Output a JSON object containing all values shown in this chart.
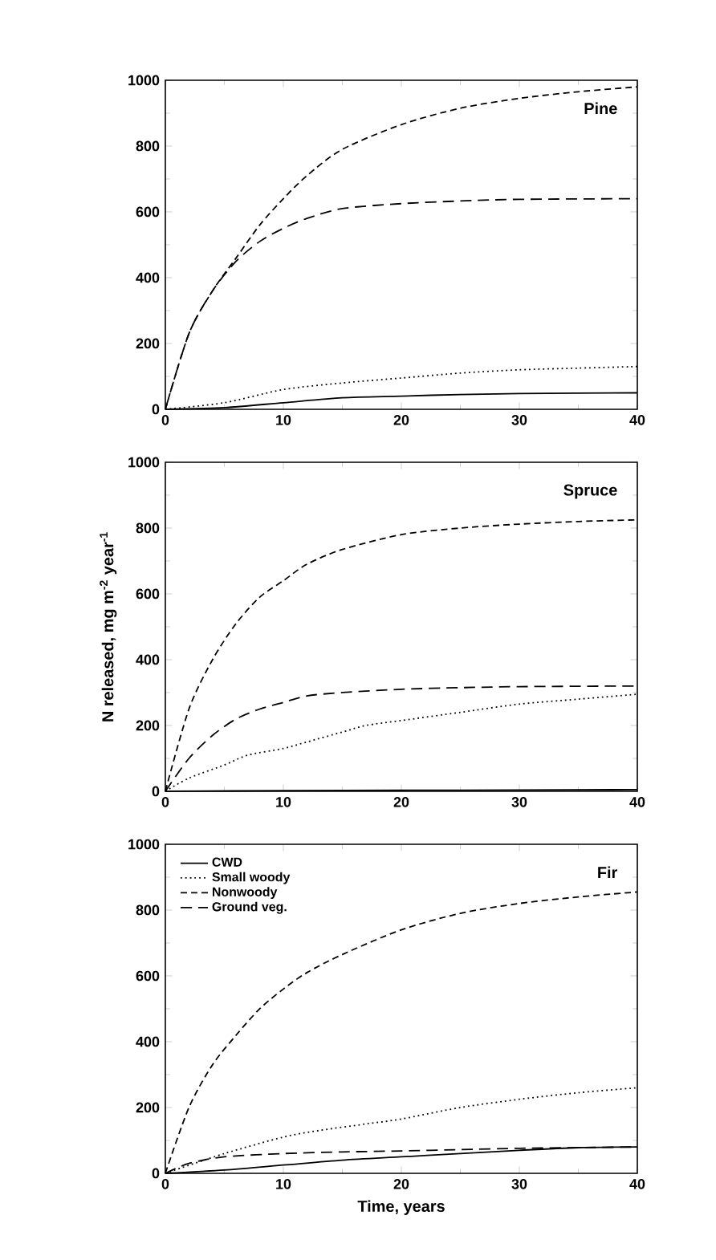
{
  "chart_data": [
    {
      "type": "line",
      "title": "Pine",
      "xlim": [
        0,
        40
      ],
      "ylim": [
        0,
        1000
      ],
      "xticks": [
        0,
        10,
        20,
        30,
        40
      ],
      "yticks": [
        0,
        200,
        400,
        600,
        800,
        1000
      ],
      "legend": false,
      "series": [
        {
          "color": "#000000",
          "line_style": "solid",
          "x": [
            0,
            5,
            10,
            15,
            20,
            25,
            30,
            40
          ],
          "values": [
            0,
            5,
            20,
            35,
            40,
            45,
            48,
            50
          ]
        },
        {
          "color": "#000000",
          "line_style": "dotted",
          "x": [
            0,
            5,
            10,
            15,
            20,
            25,
            30,
            35,
            40
          ],
          "values": [
            0,
            20,
            60,
            80,
            95,
            110,
            120,
            125,
            130
          ]
        },
        {
          "color": "#000000",
          "line_style": "dashed",
          "x": [
            0,
            2,
            4,
            6,
            8,
            10,
            12,
            15,
            20,
            25,
            30,
            35,
            40
          ],
          "values": [
            0,
            230,
            360,
            460,
            560,
            640,
            710,
            790,
            865,
            915,
            945,
            965,
            980
          ]
        },
        {
          "color": "#000000",
          "line_style": "long dashed",
          "x": [
            0,
            2,
            4,
            6,
            8,
            10,
            12,
            15,
            20,
            25,
            30,
            40
          ],
          "values": [
            0,
            230,
            360,
            450,
            510,
            550,
            580,
            610,
            625,
            633,
            638,
            640
          ]
        }
      ]
    },
    {
      "type": "line",
      "title": "Spruce",
      "ylabel": "N released, mg m$^{-2}$ year$^{-1}$",
      "xlim": [
        0,
        40
      ],
      "ylim": [
        0,
        1000
      ],
      "xticks": [
        0,
        10,
        20,
        30,
        40
      ],
      "yticks": [
        0,
        200,
        400,
        600,
        800,
        1000
      ],
      "legend": false,
      "series": [
        {
          "color": "#000000",
          "line_style": "solid",
          "x": [
            0,
            10,
            20,
            30,
            40
          ],
          "values": [
            0,
            2,
            3,
            4,
            5
          ]
        },
        {
          "color": "#000000",
          "line_style": "dotted",
          "x": [
            0,
            2,
            5,
            7,
            10,
            12,
            15,
            17,
            20,
            25,
            30,
            35,
            40
          ],
          "values": [
            0,
            40,
            80,
            110,
            130,
            150,
            180,
            200,
            215,
            240,
            265,
            280,
            295
          ]
        },
        {
          "color": "#000000",
          "line_style": "dashed",
          "x": [
            0,
            2,
            4,
            6,
            8,
            10,
            12,
            15,
            20,
            25,
            30,
            35,
            40
          ],
          "values": [
            0,
            250,
            400,
            510,
            590,
            640,
            690,
            735,
            780,
            800,
            812,
            820,
            825
          ]
        },
        {
          "color": "#000000",
          "line_style": "long dashed",
          "x": [
            0,
            2,
            4,
            6,
            8,
            10,
            12,
            15,
            20,
            25,
            30,
            40
          ],
          "values": [
            0,
            100,
            170,
            220,
            250,
            270,
            290,
            300,
            310,
            315,
            318,
            320
          ]
        }
      ]
    },
    {
      "type": "line",
      "title": "Fir",
      "xlabel": "Time, years",
      "xlim": [
        0,
        40
      ],
      "ylim": [
        0,
        1000
      ],
      "xticks": [
        0,
        10,
        20,
        30,
        40
      ],
      "yticks": [
        0,
        200,
        400,
        600,
        800,
        1000
      ],
      "legend": "top left",
      "series": [
        {
          "name": "CWD",
          "color": "#000000",
          "line_style": "solid",
          "x": [
            0,
            5,
            10,
            15,
            20,
            25,
            30,
            35,
            40
          ],
          "values": [
            0,
            10,
            25,
            40,
            50,
            60,
            70,
            78,
            80
          ]
        },
        {
          "name": "Small woody",
          "color": "#000000",
          "line_style": "dotted",
          "x": [
            0,
            5,
            10,
            13,
            17,
            20,
            25,
            30,
            35,
            40
          ],
          "values": [
            0,
            60,
            110,
            130,
            150,
            165,
            200,
            225,
            245,
            260
          ]
        },
        {
          "name": "Nonwoody",
          "color": "#000000",
          "line_style": "dashed",
          "x": [
            0,
            2,
            4,
            6,
            8,
            10,
            12,
            15,
            20,
            25,
            30,
            35,
            40
          ],
          "values": [
            0,
            200,
            330,
            420,
            500,
            560,
            610,
            665,
            740,
            790,
            820,
            840,
            855
          ]
        },
        {
          "name": "Ground veg.",
          "color": "#000000",
          "line_style": "long dashed",
          "x": [
            0,
            2,
            5,
            10,
            15,
            20,
            25,
            30,
            35,
            40
          ],
          "values": [
            0,
            30,
            50,
            60,
            65,
            68,
            72,
            76,
            78,
            80
          ]
        }
      ]
    }
  ]
}
